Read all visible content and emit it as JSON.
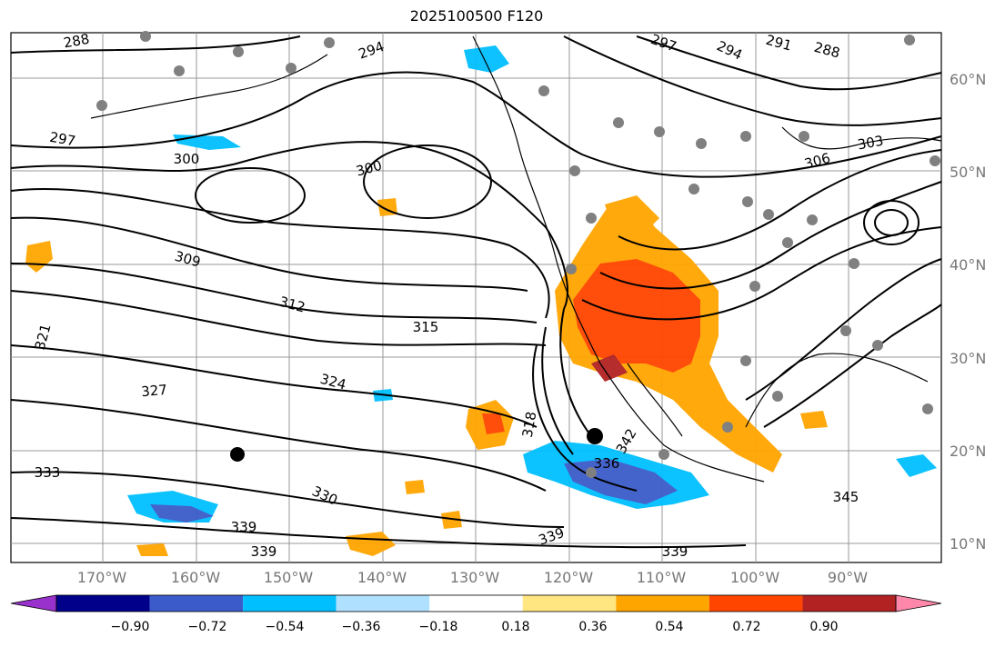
{
  "title": "2025100500 F120",
  "lat_labels": [
    "60°N",
    "50°N",
    "40°N",
    "30°N",
    "20°N",
    "10°N"
  ],
  "lon_labels": [
    "170°W",
    "160°W",
    "150°W",
    "140°W",
    "130°W",
    "120°W",
    "110°W",
    "100°W",
    "90°W"
  ],
  "colorbar": {
    "colors": [
      "#9932cc",
      "#00008b",
      "#3a5bc9",
      "#00bfff",
      "#b0e0ff",
      "#ffffff",
      "#ffe680",
      "#ffa500",
      "#ff4500",
      "#b22222",
      "#ff88aa"
    ],
    "tick_labels": [
      "−0.90",
      "−0.72",
      "−0.54",
      "−0.36",
      "−0.18",
      "0.18",
      "0.36",
      "0.54",
      "0.72",
      "0.90"
    ]
  },
  "contour_labels": [
    "288",
    "294",
    "297",
    "294",
    "291",
    "288",
    "297",
    "300",
    "300",
    "306",
    "303",
    "309",
    "312",
    "315",
    "321",
    "324",
    "327",
    "318",
    "342",
    "336",
    "333",
    "330",
    "339",
    "339",
    "339",
    "339",
    "345"
  ],
  "colors": {
    "positive": "#ff4500",
    "negative": "#3a5bc9",
    "grid": "#999999"
  }
}
